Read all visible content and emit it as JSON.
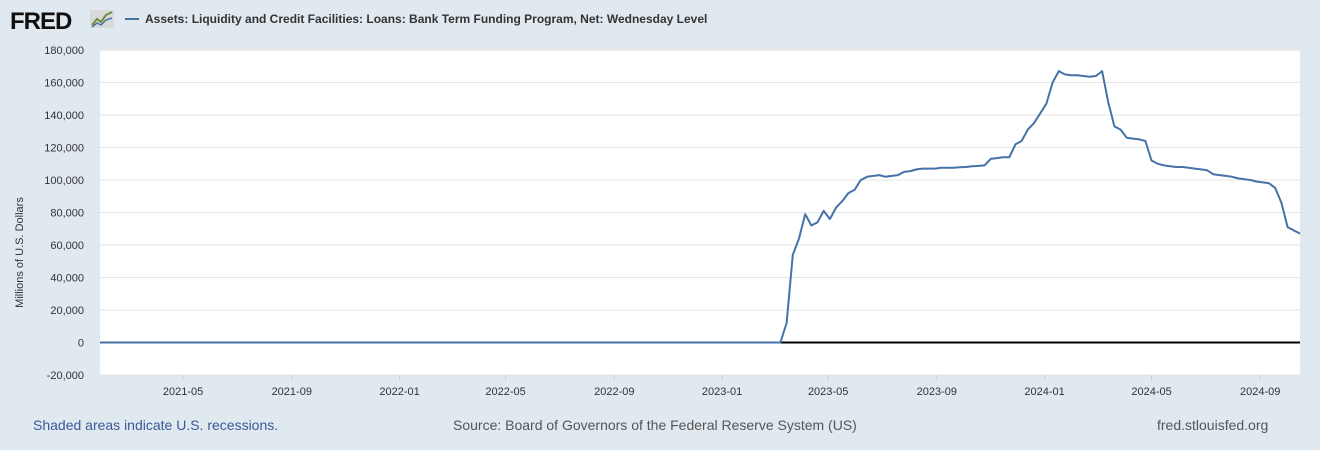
{
  "header": {
    "logo_text": "FRED",
    "legend_label": "Assets: Liquidity and Credit Facilities: Loans: Bank Term Funding Program, Net: Wednesday Level"
  },
  "footer": {
    "recessions_note": "Shaded areas indicate U.S. recessions.",
    "source": "Source: Board of Governors of the Federal Reserve System (US)",
    "site": "fred.stlouisfed.org"
  },
  "colors": {
    "series": "#4572a7",
    "background": "#e1e9f0",
    "plot_background": "#ffffff",
    "zero_line": "#000000"
  },
  "chart_data": {
    "type": "line",
    "title": "",
    "xlabel": "",
    "ylabel": "Millions of U.S. Dollars",
    "ylim": [
      -20000,
      180000
    ],
    "xlim": [
      "2021-01-27",
      "2024-10-16"
    ],
    "grid": true,
    "legend_position": "top",
    "y_ticks": [
      -20000,
      0,
      20000,
      40000,
      60000,
      80000,
      100000,
      120000,
      140000,
      160000,
      180000
    ],
    "y_tick_labels": [
      "-20,000",
      "0",
      "20,000",
      "40,000",
      "60,000",
      "80,000",
      "100,000",
      "120,000",
      "140,000",
      "160,000",
      "180,000"
    ],
    "x_ticks": [
      "2021-05-01",
      "2021-09-01",
      "2022-01-01",
      "2022-05-01",
      "2022-09-01",
      "2023-01-01",
      "2023-05-01",
      "2023-09-01",
      "2024-01-01",
      "2024-05-01",
      "2024-09-01"
    ],
    "x_tick_labels": [
      "2021-05",
      "2021-09",
      "2022-01",
      "2022-05",
      "2022-09",
      "2023-01",
      "2023-05",
      "2023-09",
      "2024-01",
      "2024-05",
      "2024-09"
    ],
    "series": [
      {
        "name": "Assets: Liquidity and Credit Facilities: Loans: Bank Term Funding Program, Net: Wednesday Level",
        "x": [
          "2021-01-27",
          "2023-03-08",
          "2023-03-15",
          "2023-03-22",
          "2023-03-29",
          "2023-04-05",
          "2023-04-12",
          "2023-04-19",
          "2023-04-26",
          "2023-05-03",
          "2023-05-10",
          "2023-05-17",
          "2023-05-24",
          "2023-05-31",
          "2023-06-07",
          "2023-06-14",
          "2023-06-21",
          "2023-06-28",
          "2023-07-05",
          "2023-07-12",
          "2023-07-19",
          "2023-07-26",
          "2023-08-02",
          "2023-08-09",
          "2023-08-16",
          "2023-08-23",
          "2023-08-30",
          "2023-09-06",
          "2023-09-13",
          "2023-09-20",
          "2023-09-27",
          "2023-10-04",
          "2023-10-11",
          "2023-10-18",
          "2023-10-25",
          "2023-11-01",
          "2023-11-08",
          "2023-11-15",
          "2023-11-22",
          "2023-11-29",
          "2023-12-06",
          "2023-12-13",
          "2023-12-20",
          "2023-12-27",
          "2024-01-03",
          "2024-01-10",
          "2024-01-17",
          "2024-01-24",
          "2024-01-31",
          "2024-02-07",
          "2024-02-14",
          "2024-02-21",
          "2024-02-28",
          "2024-03-06",
          "2024-03-13",
          "2024-03-20",
          "2024-03-27",
          "2024-04-03",
          "2024-04-10",
          "2024-04-17",
          "2024-04-24",
          "2024-05-01",
          "2024-05-08",
          "2024-05-15",
          "2024-05-22",
          "2024-05-29",
          "2024-06-05",
          "2024-06-12",
          "2024-06-19",
          "2024-06-26",
          "2024-07-03",
          "2024-07-10",
          "2024-07-17",
          "2024-07-24",
          "2024-07-31",
          "2024-08-07",
          "2024-08-14",
          "2024-08-21",
          "2024-08-28",
          "2024-09-04",
          "2024-09-11",
          "2024-09-18",
          "2024-09-25",
          "2024-10-02",
          "2024-10-16"
        ],
        "values": [
          0,
          0,
          12000,
          54000,
          64000,
          79000,
          72000,
          74000,
          81000,
          76000,
          83000,
          87000,
          92000,
          94000,
          100000,
          102000,
          102500,
          103000,
          102000,
          102500,
          103000,
          105000,
          105500,
          106500,
          107000,
          107000,
          107000,
          107500,
          107500,
          107500,
          107800,
          108000,
          108500,
          108700,
          109000,
          113000,
          113500,
          114000,
          114000,
          122000,
          124000,
          131000,
          135000,
          141000,
          147000,
          160000,
          167000,
          165000,
          164500,
          164500,
          164000,
          163500,
          164000,
          167000,
          148000,
          133000,
          131000,
          126000,
          125500,
          125000,
          124000,
          112000,
          110000,
          109000,
          108500,
          108000,
          108000,
          107500,
          107000,
          106500,
          106000,
          103500,
          103000,
          102500,
          102000,
          101000,
          100500,
          100000,
          99000,
          98500,
          98000,
          95000,
          86000,
          71000,
          67000
        ]
      }
    ]
  }
}
